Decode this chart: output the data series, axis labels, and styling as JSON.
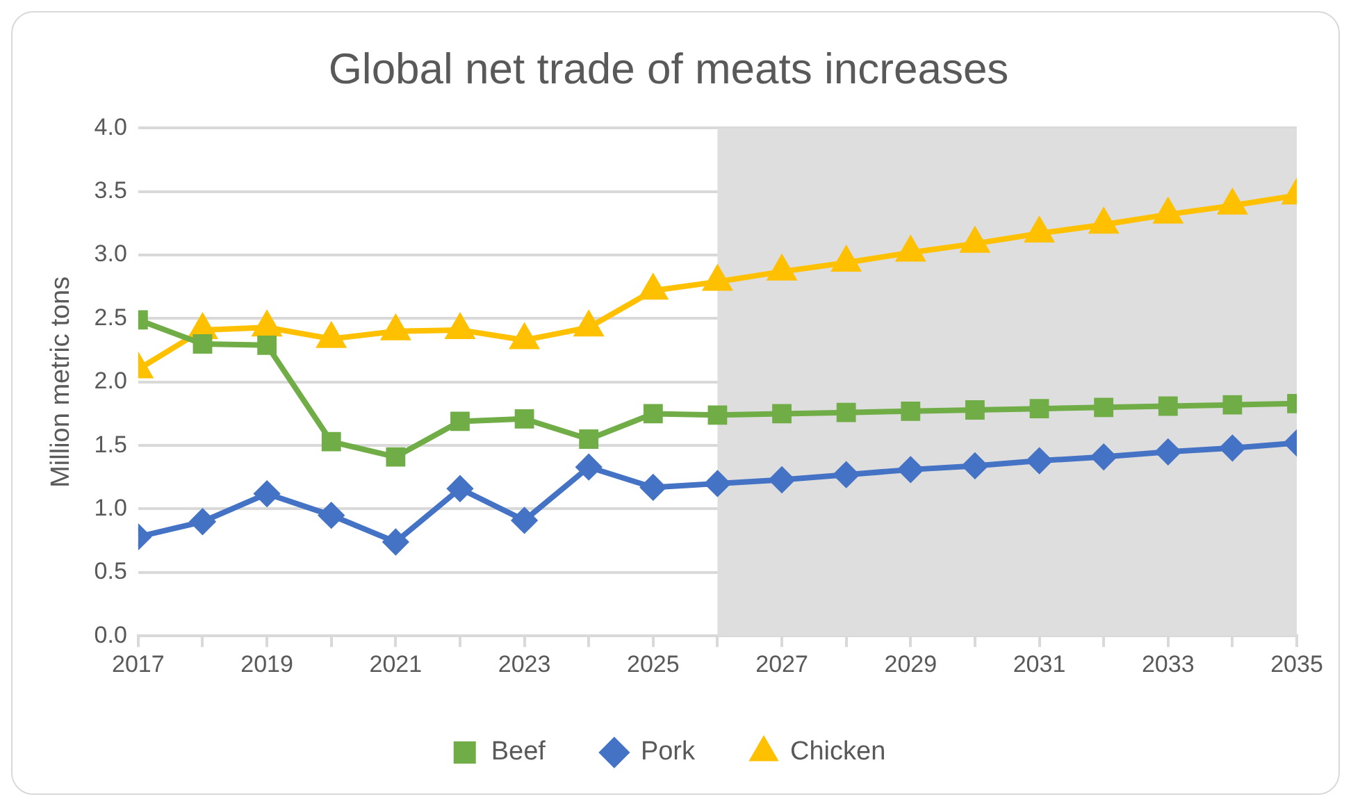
{
  "chart_data": {
    "type": "line",
    "title": "Global net trade of meats increases",
    "ylabel": "Million metric tons",
    "x": [
      2017,
      2018,
      2019,
      2020,
      2021,
      2022,
      2023,
      2024,
      2025,
      2026,
      2027,
      2028,
      2029,
      2030,
      2031,
      2032,
      2033,
      2034,
      2035
    ],
    "series": [
      {
        "name": "Beef",
        "color": "#70ad47",
        "marker": "square",
        "values": [
          2.49,
          2.3,
          2.29,
          1.53,
          1.41,
          1.69,
          1.71,
          1.55,
          1.75,
          1.74,
          1.75,
          1.76,
          1.77,
          1.78,
          1.79,
          1.8,
          1.81,
          1.82,
          1.83
        ]
      },
      {
        "name": "Pork",
        "color": "#4472c4",
        "marker": "diamond",
        "values": [
          0.78,
          0.9,
          1.12,
          0.95,
          0.74,
          1.16,
          0.91,
          1.33,
          1.17,
          1.2,
          1.23,
          1.27,
          1.31,
          1.34,
          1.38,
          1.41,
          1.45,
          1.48,
          1.52
        ]
      },
      {
        "name": "Chicken",
        "color": "#ffc000",
        "marker": "triangle",
        "values": [
          2.1,
          2.41,
          2.43,
          2.34,
          2.4,
          2.41,
          2.33,
          2.43,
          2.72,
          2.79,
          2.87,
          2.94,
          3.02,
          3.09,
          3.17,
          3.24,
          3.32,
          3.39,
          3.47
        ]
      }
    ],
    "xlim": [
      2017,
      2035
    ],
    "xticks": [
      2017,
      {
        "value": 2018,
        "label": null
      },
      2019,
      {
        "value": 2020,
        "label": null
      },
      2021,
      {
        "value": 2022,
        "label": null
      },
      2023,
      {
        "value": 2024,
        "label": null
      },
      2025,
      {
        "value": 2026,
        "label": null
      },
      2027,
      {
        "value": 2028,
        "label": null
      },
      2029,
      {
        "value": 2030,
        "label": null
      },
      2031,
      {
        "value": 2032,
        "label": null
      },
      2033,
      {
        "value": 2034,
        "label": null
      },
      2035
    ],
    "ylim": [
      0,
      4
    ],
    "yticks": [
      {
        "value": 0,
        "label": "0.0"
      },
      0.5,
      {
        "value": 1,
        "label": "1.0"
      },
      1.5,
      {
        "value": 2,
        "label": "2.0"
      },
      2.5,
      {
        "value": 3,
        "label": "3.0"
      },
      3.5,
      {
        "value": 4,
        "label": "4.0"
      }
    ],
    "bands": [
      {
        "axis": "x",
        "from": 2026,
        "to": 2035,
        "color": "#dedede"
      }
    ],
    "grid": "y",
    "legend": "bottom",
    "line_style": "solid"
  }
}
